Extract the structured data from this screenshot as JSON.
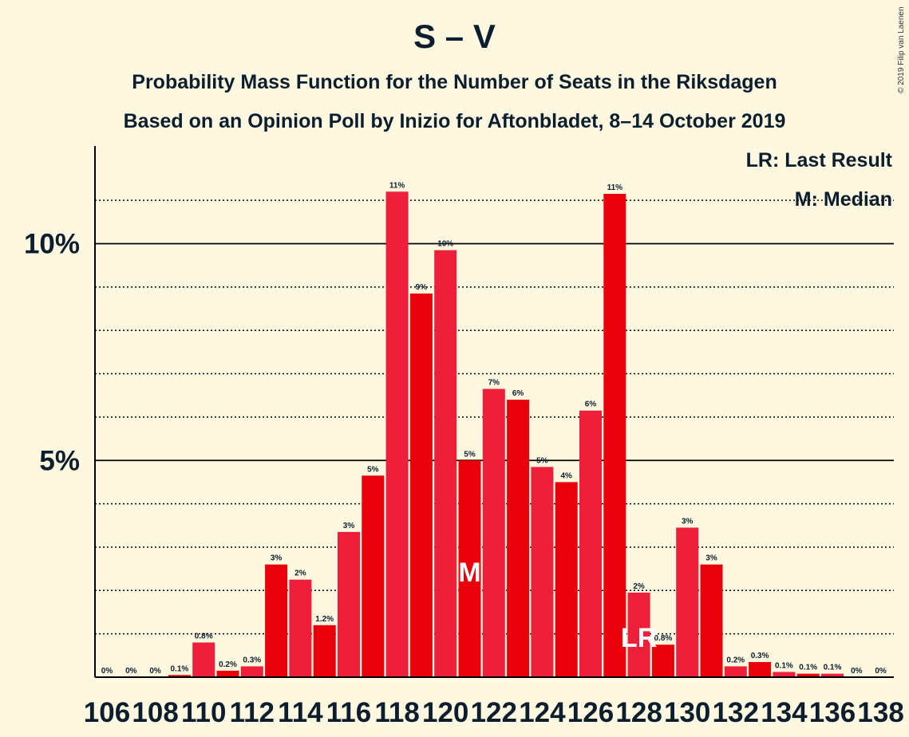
{
  "title": "S – V",
  "subtitle1": "Probability Mass Function for the Number of Seats in the Riksdagen",
  "subtitle2": "Based on an Opinion Poll by Inizio for Aftonbladet, 8–14 October 2019",
  "copyright": "© 2019 Filip van Laenen",
  "legend": {
    "lr": "LR: Last Result",
    "median": "M: Median"
  },
  "markers": {
    "median_label": "M",
    "last_result_label": "LR"
  },
  "colors": {
    "dark_red": "#E8000B",
    "light_red": "#EE1F3B",
    "background": "#FFF8E1",
    "text": "#0A1E2E"
  },
  "chart_data": {
    "type": "bar",
    "ylim": [
      0,
      12.2
    ],
    "y_ticks": [
      {
        "value": 5,
        "label": "5%"
      },
      {
        "value": 10,
        "label": "10%"
      }
    ],
    "minor_gridlines": [
      1,
      2,
      3,
      4,
      6,
      7,
      8,
      9,
      11
    ],
    "median_seat": 121,
    "last_result_seat": 128,
    "categories": [
      106,
      107,
      108,
      109,
      110,
      111,
      112,
      113,
      114,
      115,
      116,
      117,
      118,
      119,
      120,
      121,
      122,
      123,
      124,
      125,
      126,
      127,
      128,
      129,
      130,
      131,
      132,
      133,
      134,
      135,
      136,
      137,
      138
    ],
    "x_tick_labels": [
      "106",
      "108",
      "110",
      "112",
      "114",
      "116",
      "118",
      "120",
      "122",
      "124",
      "126",
      "128",
      "130",
      "132",
      "134",
      "136",
      "138"
    ],
    "values": [
      0,
      0,
      0,
      0.05,
      0.8,
      0.15,
      0.25,
      2.6,
      2.25,
      1.2,
      3.35,
      4.65,
      11.2,
      8.85,
      9.85,
      5.0,
      6.65,
      6.4,
      4.85,
      4.5,
      6.15,
      11.15,
      1.95,
      0.75,
      3.45,
      2.6,
      0.25,
      0.35,
      0.12,
      0.08,
      0.08,
      0,
      0
    ],
    "bar_labels": [
      "0%",
      "0%",
      "0%",
      "0.1%",
      "0.8%",
      "0.2%",
      "0.3%",
      "3%",
      "2%",
      "1.2%",
      "3%",
      "5%",
      "11%",
      "9%",
      "10%",
      "5%",
      "7%",
      "6%",
      "5%",
      "4%",
      "6%",
      "11%",
      "2%",
      "0.8%",
      "3%",
      "3%",
      "0.2%",
      "0.3%",
      "0.1%",
      "0.1%",
      "0.1%",
      "0%",
      "0%"
    ]
  }
}
